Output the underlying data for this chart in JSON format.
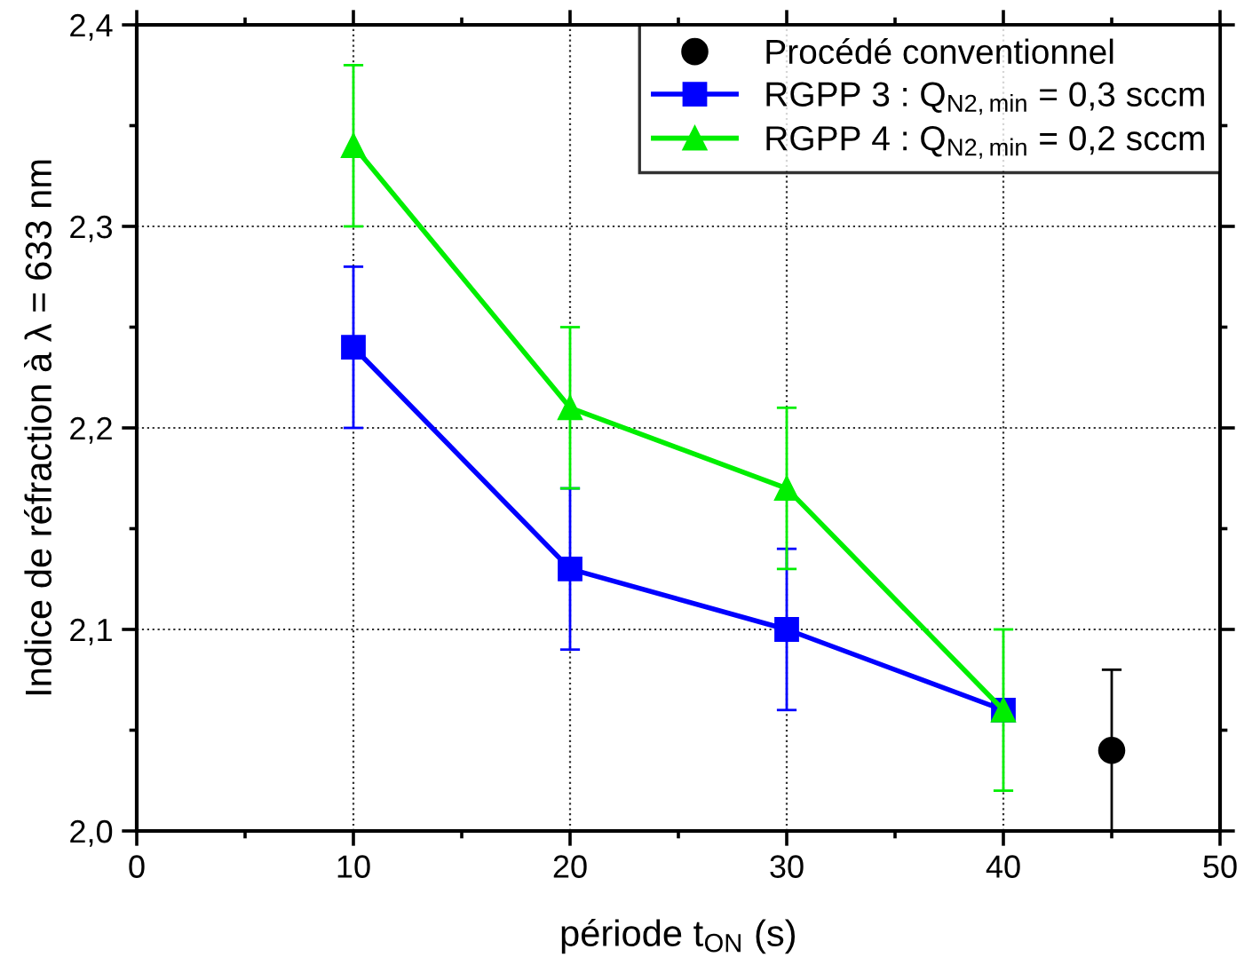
{
  "chart_data": {
    "type": "line",
    "xlabel": "période t$_{ON}$ (s)",
    "ylabel": "Indice de réfraction à λ = 633 nm",
    "xlim": [
      0,
      50
    ],
    "xticks": [
      0,
      10,
      20,
      30,
      40,
      50
    ],
    "ylim": [
      2.0,
      2.4
    ],
    "yticks": [
      {
        "value": 2.0,
        "label": "2,0"
      },
      {
        "value": 2.1,
        "label": "2,1"
      },
      {
        "value": 2.2,
        "label": "2,2"
      },
      {
        "value": 2.3,
        "label": "2,3"
      },
      {
        "value": 2.4,
        "label": "2,4"
      }
    ],
    "grid": true,
    "legend": "top right",
    "line_style": "solid",
    "series": [
      {
        "name": "Procédé conventionnel",
        "type": "scatter",
        "marker": "circle",
        "color": "#000000",
        "x": [
          45
        ],
        "values": [
          2.04
        ],
        "errors": [
          0.04
        ]
      },
      {
        "name": "RGPP 3 : Q$_{N2,min}$ = 0,3 sccm",
        "marker": "square",
        "color": "#0000ff",
        "x": [
          10,
          20,
          30,
          40
        ],
        "values": [
          2.24,
          2.13,
          2.1,
          2.06
        ],
        "errors": [
          0.04,
          0.04,
          0.04,
          null
        ]
      },
      {
        "name": "RGPP 4 : Q$_{N2,min}$ = 0,2 sccm",
        "marker": "triangle",
        "color": "#00ee00",
        "x": [
          10,
          20,
          30,
          40
        ],
        "values": [
          2.34,
          2.21,
          2.17,
          2.06
        ],
        "errors": [
          0.04,
          0.04,
          0.04,
          0.04
        ]
      }
    ]
  }
}
